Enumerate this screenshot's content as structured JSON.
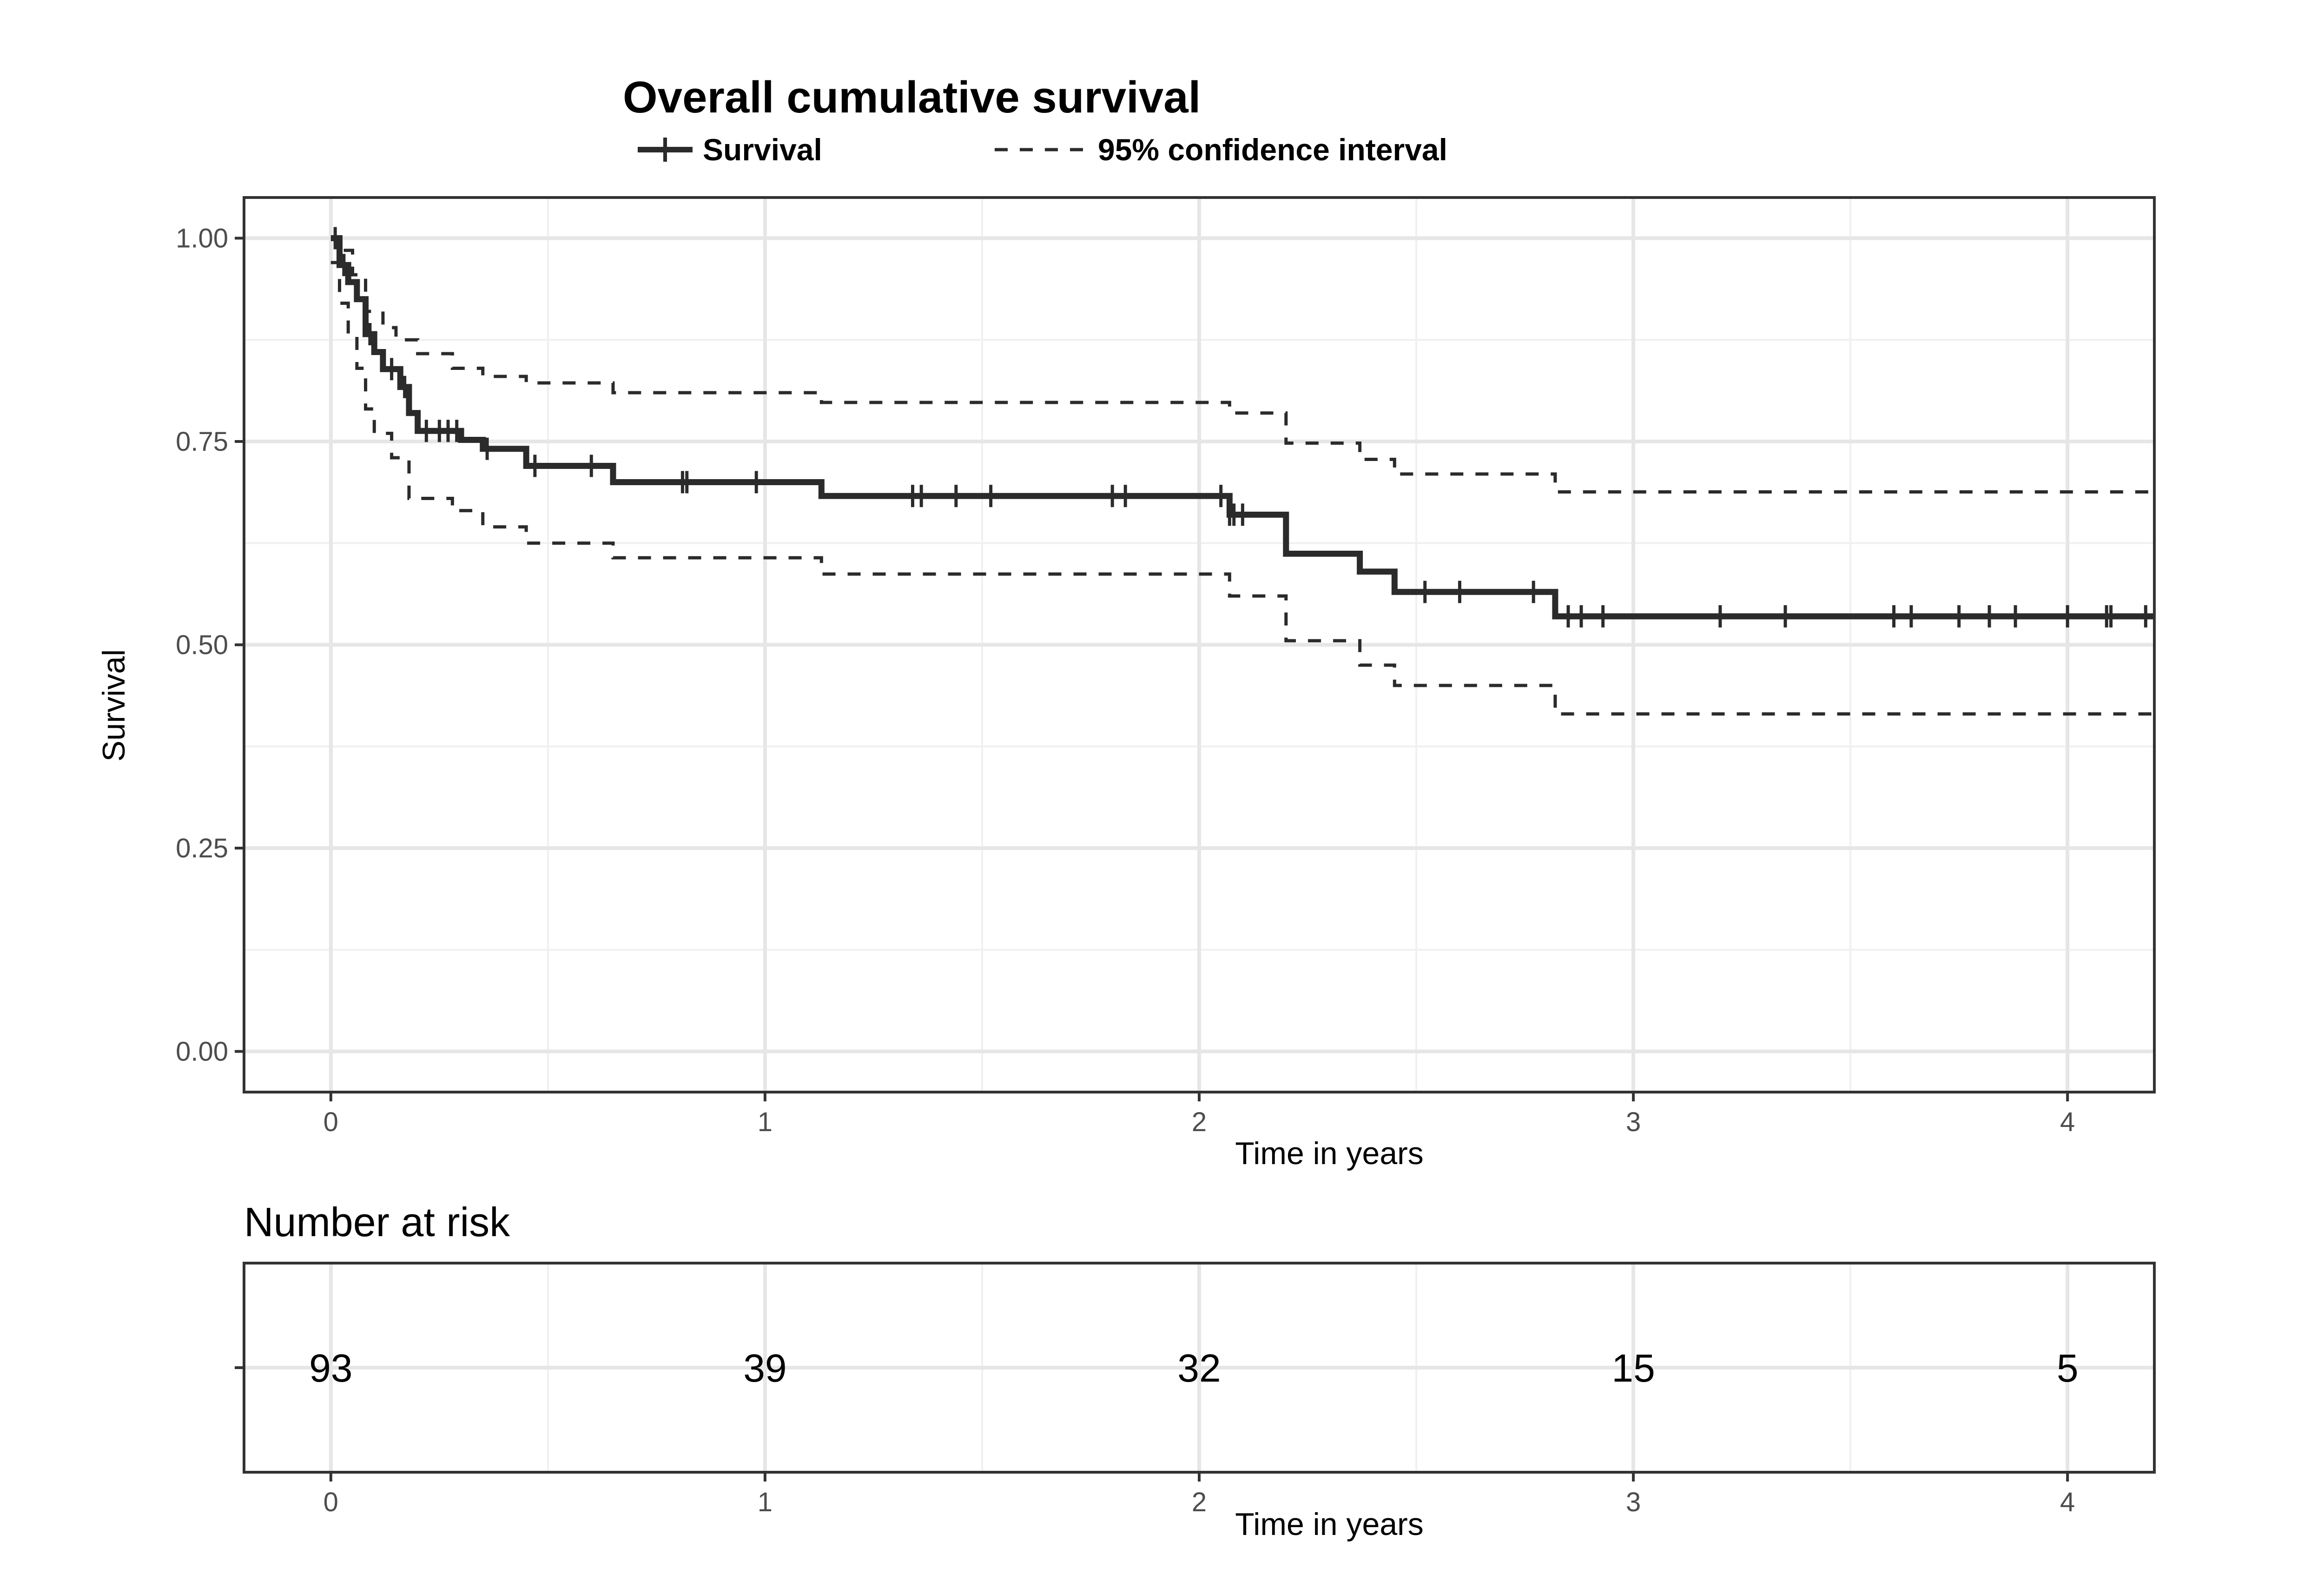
{
  "chart_data": [
    {
      "type": "line",
      "title": "Overall cumulative survival",
      "xlabel": "Time in years",
      "ylabel": "Survival",
      "xlim": [
        -0.2,
        4.2
      ],
      "ylim": [
        -0.05,
        1.05
      ],
      "x_ticks": [
        "0",
        "1",
        "2",
        "3",
        "4"
      ],
      "y_ticks": [
        "0.00",
        "0.25",
        "0.50",
        "0.75",
        "1.00"
      ],
      "grid": true,
      "legend_position": "top",
      "series": [
        {
          "name": "Survival",
          "style": "solid",
          "color": "#2b2b2b",
          "x": [
            0,
            0.02,
            0.04,
            0.06,
            0.08,
            0.1,
            0.12,
            0.16,
            0.18,
            0.2,
            0.3,
            0.35,
            0.45,
            0.65,
            1.13,
            2.07,
            2.2,
            2.37,
            2.45,
            2.82,
            4.2
          ],
          "y": [
            1.0,
            0.967,
            0.946,
            0.925,
            0.882,
            0.86,
            0.839,
            0.817,
            0.785,
            0.763,
            0.752,
            0.741,
            0.72,
            0.7,
            0.683,
            0.66,
            0.612,
            0.59,
            0.565,
            0.535,
            0.535
          ],
          "censor_x": [
            0.01,
            0.03,
            0.09,
            0.14,
            0.17,
            0.22,
            0.25,
            0.27,
            0.29,
            0.36,
            0.47,
            0.6,
            0.81,
            0.82,
            0.98,
            1.34,
            1.36,
            1.44,
            1.52,
            1.8,
            1.83,
            2.05,
            2.07,
            2.08,
            2.1,
            2.52,
            2.6,
            2.77,
            2.85,
            2.88,
            2.93,
            3.2,
            3.35,
            3.6,
            3.64,
            3.75,
            3.82,
            3.88,
            4.0,
            4.09,
            4.1,
            4.18
          ]
        },
        {
          "name": "95% confidence interval",
          "style": "dashed",
          "color": "#2b2b2b",
          "x": [
            0,
            0.02,
            0.05,
            0.08,
            0.12,
            0.15,
            0.2,
            0.28,
            0.35,
            0.45,
            0.65,
            1.13,
            2.07,
            2.2,
            2.37,
            2.45,
            2.82,
            4.2
          ],
          "y": [
            1.0,
            0.985,
            0.955,
            0.91,
            0.89,
            0.875,
            0.858,
            0.84,
            0.83,
            0.822,
            0.81,
            0.798,
            0.785,
            0.748,
            0.728,
            0.71,
            0.688,
            0.688
          ]
        },
        {
          "name": "95% confidence interval",
          "style": "dashed",
          "color": "#2b2b2b",
          "x": [
            0,
            0.02,
            0.04,
            0.06,
            0.08,
            0.1,
            0.14,
            0.18,
            0.28,
            0.35,
            0.45,
            0.65,
            1.13,
            2.07,
            2.2,
            2.37,
            2.45,
            2.82,
            4.2
          ],
          "y": [
            0.97,
            0.92,
            0.88,
            0.84,
            0.79,
            0.76,
            0.73,
            0.68,
            0.665,
            0.645,
            0.625,
            0.607,
            0.587,
            0.56,
            0.505,
            0.475,
            0.45,
            0.415,
            0.415
          ]
        }
      ]
    },
    {
      "type": "table",
      "title": "Number at risk",
      "xlabel": "Time in years",
      "xlim": [
        -0.2,
        4.2
      ],
      "x": [
        0,
        1,
        2,
        3,
        4
      ],
      "x_ticks": [
        "0",
        "1",
        "2",
        "3",
        "4"
      ],
      "values": [
        "93",
        "39",
        "32",
        "15",
        "5"
      ],
      "grid": true
    }
  ]
}
